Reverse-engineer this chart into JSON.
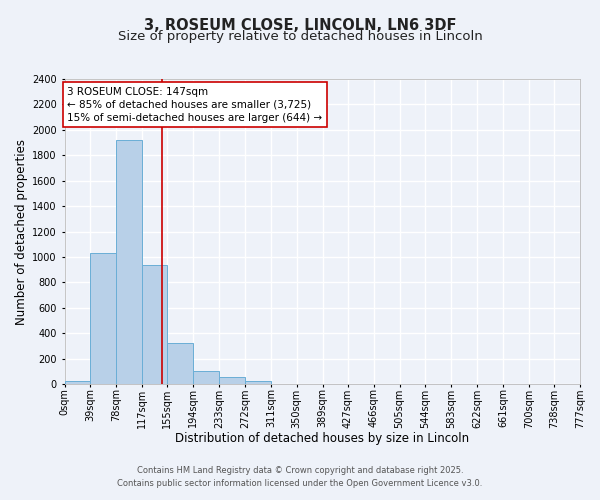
{
  "title_line1": "3, ROSEUM CLOSE, LINCOLN, LN6 3DF",
  "title_line2": "Size of property relative to detached houses in Lincoln",
  "xlabel": "Distribution of detached houses by size in Lincoln",
  "ylabel": "Number of detached properties",
  "bar_edges": [
    0,
    39,
    78,
    117,
    155,
    194,
    233,
    272,
    311,
    350,
    389,
    427,
    466,
    505,
    544,
    583,
    622,
    661,
    700,
    738,
    777
  ],
  "bar_heights": [
    25,
    1030,
    1920,
    940,
    320,
    105,
    55,
    25,
    5,
    0,
    0,
    0,
    0,
    0,
    0,
    0,
    0,
    0,
    0,
    0
  ],
  "bar_color": "#b8d0e8",
  "bar_edge_color": "#6aaed6",
  "vline_x": 147,
  "vline_color": "#cc0000",
  "ylim": [
    0,
    2400
  ],
  "yticks": [
    0,
    200,
    400,
    600,
    800,
    1000,
    1200,
    1400,
    1600,
    1800,
    2000,
    2200,
    2400
  ],
  "annotation_title": "3 ROSEUM CLOSE: 147sqm",
  "annotation_line1": "← 85% of detached houses are smaller (3,725)",
  "annotation_line2": "15% of semi-detached houses are larger (644) →",
  "annotation_box_color": "#ffffff",
  "annotation_box_edge": "#cc0000",
  "footer_line1": "Contains HM Land Registry data © Crown copyright and database right 2025.",
  "footer_line2": "Contains public sector information licensed under the Open Government Licence v3.0.",
  "tick_labels": [
    "0sqm",
    "39sqm",
    "78sqm",
    "117sqm",
    "155sqm",
    "194sqm",
    "233sqm",
    "272sqm",
    "311sqm",
    "350sqm",
    "389sqm",
    "427sqm",
    "466sqm",
    "505sqm",
    "544sqm",
    "583sqm",
    "622sqm",
    "661sqm",
    "700sqm",
    "738sqm",
    "777sqm"
  ],
  "bg_color": "#eef2f9",
  "grid_color": "#ffffff",
  "title_fontsize": 10.5,
  "subtitle_fontsize": 9.5,
  "axis_label_fontsize": 8.5,
  "tick_fontsize": 7,
  "annotation_fontsize": 7.5,
  "footer_fontsize": 6
}
